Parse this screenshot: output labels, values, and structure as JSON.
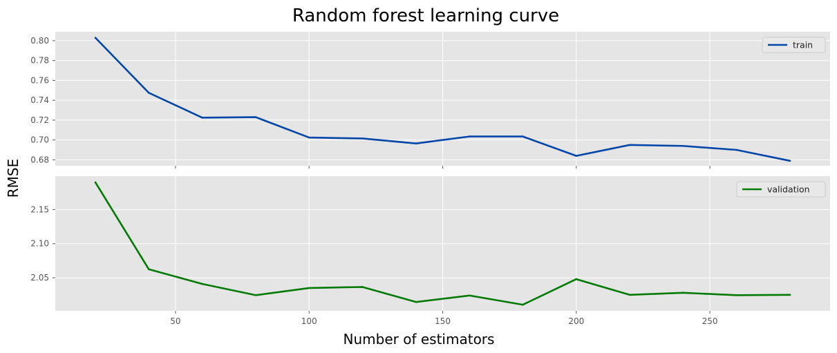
{
  "chart_data": [
    {
      "type": "line",
      "title": "Random forest learning curve",
      "xlabel": "Number of estimators",
      "ylabel": "RMSE",
      "x": [
        20,
        40,
        60,
        80,
        100,
        120,
        140,
        160,
        180,
        200,
        220,
        240,
        260,
        280
      ],
      "xlim": [
        5,
        295
      ],
      "x_ticks": [
        50,
        100,
        150,
        200,
        250
      ],
      "panel": "top",
      "series": [
        {
          "name": "train",
          "color": "#0046a8",
          "values": [
            0.803,
            0.7475,
            0.7225,
            0.723,
            0.7025,
            0.7015,
            0.6965,
            0.7035,
            0.7035,
            0.684,
            0.695,
            0.694,
            0.69,
            0.679
          ]
        }
      ],
      "ylim": [
        0.674,
        0.809
      ],
      "y_ticks": [
        "0.68",
        "0.70",
        "0.72",
        "0.74",
        "0.76",
        "0.78",
        "0.80"
      ],
      "x_ticks_labels_shown": false,
      "grid": true,
      "legend": "top-right"
    },
    {
      "type": "line",
      "x": [
        20,
        40,
        60,
        80,
        100,
        120,
        140,
        160,
        180,
        200,
        220,
        240,
        260,
        280
      ],
      "xlim": [
        5,
        295
      ],
      "x_ticks": [
        50,
        100,
        150,
        200,
        250
      ],
      "panel": "bottom",
      "series": [
        {
          "name": "validation",
          "color": "#007a00",
          "values": [
            2.19,
            2.0625,
            2.041,
            2.0245,
            2.035,
            2.0365,
            2.0145,
            2.024,
            2.0105,
            2.048,
            2.025,
            2.028,
            2.0245,
            2.025
          ]
        }
      ],
      "ylim": [
        2.0015,
        2.199
      ],
      "y_ticks": [
        "2.05",
        "2.10",
        "2.15"
      ],
      "x_ticks_labels_shown": true,
      "grid": true,
      "legend": "top-right"
    }
  ]
}
